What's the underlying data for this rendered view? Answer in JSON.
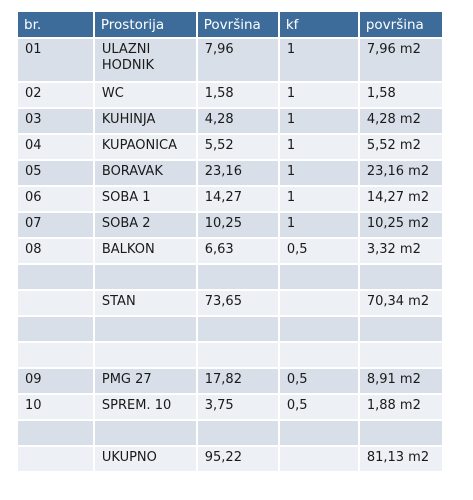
{
  "headers": [
    "br.",
    "Prostorija",
    "Površina",
    "kf",
    "površina"
  ],
  "rows": [
    [
      "01",
      "ULAZNI HODNIK",
      "7,96",
      "1",
      "7,96 m2"
    ],
    [
      "02",
      "WC",
      "1,58",
      "1",
      "1,58"
    ],
    [
      "03",
      "KUHINJA",
      "4,28",
      "1",
      "4,28 m2"
    ],
    [
      "04",
      "KUPAONICA",
      "5,52",
      "1",
      "5,52 m2"
    ],
    [
      "05",
      "BORAVAK",
      "23,16",
      "1",
      "23,16 m2"
    ],
    [
      "06",
      "SOBA 1",
      "14,27",
      "1",
      "14,27 m2"
    ],
    [
      "07",
      "SOBA 2",
      "10,25",
      "1",
      "10,25 m2"
    ],
    [
      "08",
      "BALKON",
      "6,63",
      "0,5",
      "3,32 m2"
    ],
    [
      "",
      "",
      "",
      "",
      ""
    ],
    [
      "",
      "STAN",
      "73,65",
      "",
      "70,34 m2"
    ],
    [
      "",
      "",
      "",
      "",
      ""
    ],
    [
      "",
      "",
      "",
      "",
      ""
    ],
    [
      "09",
      "PMG 27",
      "17,82",
      "0,5",
      "8,91 m2"
    ],
    [
      "10",
      "SPREM. 10",
      "3,75",
      "0,5",
      "1,88 m2"
    ],
    [
      "",
      "",
      "",
      "",
      ""
    ],
    [
      "",
      "UKUPNO",
      "95,22",
      "",
      "81,13 m2"
    ]
  ]
}
